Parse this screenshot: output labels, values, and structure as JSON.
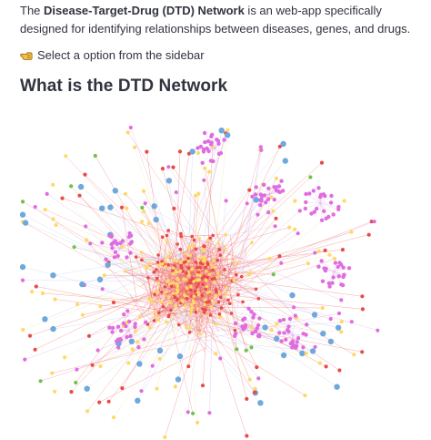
{
  "intro": {
    "lead": "The ",
    "bold_name": "Disease-Target-Drug (DTD) Network",
    "rest": " is an web-app specifically designed for identifying relationships between diseases, genes, and drugs."
  },
  "hint": {
    "icon": "pointing-hand-icon",
    "text": "Select a option from the sidebar"
  },
  "heading": "What is the DTD Network",
  "network": {
    "node_colors": {
      "disease": "#6fa8dc",
      "gene": "#ffd966",
      "drug": "#e06ce0",
      "other_red": "#e84a4a",
      "other_green": "#6cc24a"
    },
    "edge_colors": [
      "#f25c5c",
      "#d9a3e8",
      "#a9c8f0",
      "#f5e08a"
    ]
  }
}
